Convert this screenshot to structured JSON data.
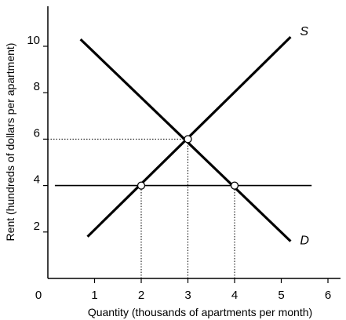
{
  "chart_data": {
    "type": "line",
    "xlabel": "Quantity (thousands of apartments per month)",
    "ylabel": "Rent (hundreds of dollars per apartment)",
    "xlim": [
      0,
      6.4
    ],
    "ylim": [
      0,
      12
    ],
    "x_ticks": [
      "1",
      "2",
      "3",
      "4",
      "5",
      "6"
    ],
    "y_ticks": [
      "2",
      "4",
      "6",
      "8",
      "10"
    ],
    "origin_label": "0",
    "grid": false,
    "series": [
      {
        "name": "S",
        "x": [
          0.85,
          5.2
        ],
        "y": [
          1.8,
          10.4
        ]
      },
      {
        "name": "D",
        "x": [
          0.7,
          5.2
        ],
        "y": [
          10.3,
          1.6
        ]
      },
      {
        "name": "",
        "x": [
          0.15,
          5.65
        ],
        "y": [
          4,
          4
        ]
      }
    ],
    "points": [
      {
        "x": 3,
        "y": 6
      },
      {
        "x": 2,
        "y": 4
      },
      {
        "x": 4,
        "y": 4
      }
    ],
    "guide_lines": [
      {
        "from": [
          0,
          6
        ],
        "to": [
          3,
          6
        ]
      },
      {
        "from": [
          3,
          0
        ],
        "to": [
          3,
          6
        ]
      },
      {
        "from": [
          2,
          0
        ],
        "to": [
          2,
          4
        ]
      },
      {
        "from": [
          4,
          0
        ],
        "to": [
          4,
          4
        ]
      }
    ]
  }
}
